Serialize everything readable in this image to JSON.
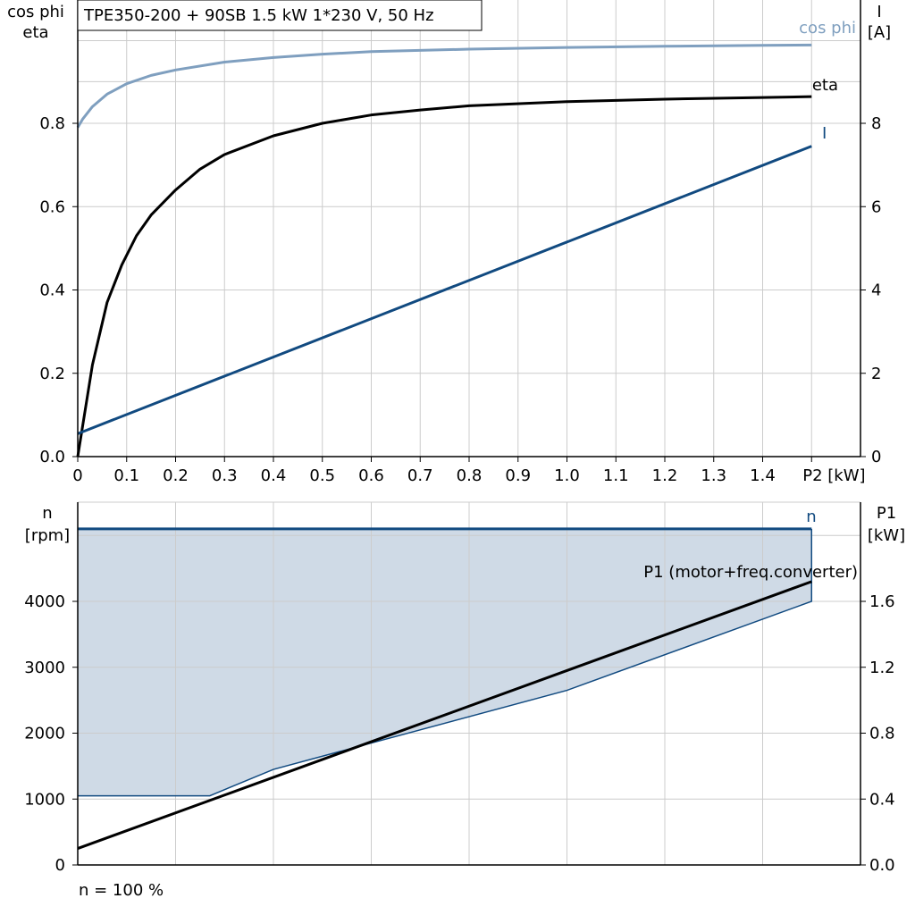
{
  "title": "TPE350-200 + 90SB   1.5 kW   1*230 V, 50 Hz",
  "footer_note": "n = 100 %",
  "colors": {
    "cos_phi": "#7f9fbf",
    "eta": "#000000",
    "current": "#114a80",
    "speed": "#114a80",
    "p1": "#000000",
    "fill": "#cfdae6",
    "grid": "#cccccc"
  },
  "chart_data": [
    {
      "type": "line",
      "left_axis_label": [
        "cos phi",
        "eta"
      ],
      "right_axis_label": [
        "I",
        "[A]"
      ],
      "xlabel": "P2 [kW]",
      "xlim": [
        0,
        1.6
      ],
      "ylim_left": [
        0,
        1.0
      ],
      "ylim_right": [
        0,
        10
      ],
      "x_ticks": [
        "0",
        "0.1",
        "0.2",
        "0.3",
        "0.4",
        "0.5",
        "0.6",
        "0.7",
        "0.8",
        "0.9",
        "1.0",
        "1.1",
        "1.2",
        "1.3",
        "1.4",
        "P2 [kW]"
      ],
      "y_ticks_left": [
        "0.0",
        "0.2",
        "0.4",
        "0.6",
        "0.8"
      ],
      "y_ticks_right": [
        "0",
        "2",
        "4",
        "6",
        "8"
      ],
      "grid": true,
      "series": [
        {
          "name": "cos phi",
          "axis": "left",
          "x": [
            0,
            0.01,
            0.03,
            0.06,
            0.1,
            0.15,
            0.2,
            0.3,
            0.4,
            0.5,
            0.6,
            0.8,
            1.0,
            1.2,
            1.4,
            1.5
          ],
          "y": [
            0.79,
            0.81,
            0.84,
            0.87,
            0.895,
            0.915,
            0.928,
            0.947,
            0.958,
            0.966,
            0.972,
            0.978,
            0.982,
            0.985,
            0.987,
            0.988
          ]
        },
        {
          "name": "eta",
          "axis": "left",
          "x": [
            0,
            0.03,
            0.06,
            0.09,
            0.12,
            0.15,
            0.2,
            0.25,
            0.3,
            0.4,
            0.5,
            0.6,
            0.7,
            0.8,
            1.0,
            1.2,
            1.4,
            1.5
          ],
          "y": [
            0,
            0.22,
            0.37,
            0.46,
            0.53,
            0.58,
            0.64,
            0.69,
            0.725,
            0.77,
            0.8,
            0.82,
            0.832,
            0.842,
            0.852,
            0.858,
            0.862,
            0.864
          ]
        },
        {
          "name": "I",
          "axis": "right",
          "x": [
            0,
            1.5
          ],
          "y": [
            0.55,
            7.45
          ]
        }
      ]
    },
    {
      "type": "area",
      "left_axis_label": [
        "n",
        "[rpm]"
      ],
      "right_axis_label": [
        "P1",
        "[kW]"
      ],
      "xlim": [
        0,
        1.6
      ],
      "ylim_left": [
        0,
        5000
      ],
      "ylim_right": [
        0,
        2.0
      ],
      "y_ticks_left": [
        "0",
        "1000",
        "2000",
        "3000",
        "4000"
      ],
      "y_ticks_right": [
        "0.0",
        "0.4",
        "0.8",
        "1.2",
        "1.6"
      ],
      "grid": true,
      "series": [
        {
          "name": "n",
          "axis": "left",
          "x": [
            0,
            1.5
          ],
          "y": [
            5100,
            5100
          ]
        },
        {
          "name": "P1 (motor+freq.converter)",
          "axis": "right",
          "x": [
            0,
            1.5
          ],
          "y": [
            0.1,
            1.72
          ]
        }
      ],
      "region_lower_boundary": {
        "axis": "right",
        "x": [
          0,
          0.27,
          0.4,
          0.6,
          1.0,
          1.5,
          1.5
        ],
        "y": [
          0.42,
          0.42,
          0.58,
          0.74,
          1.06,
          1.6,
          2.04
        ]
      }
    }
  ]
}
